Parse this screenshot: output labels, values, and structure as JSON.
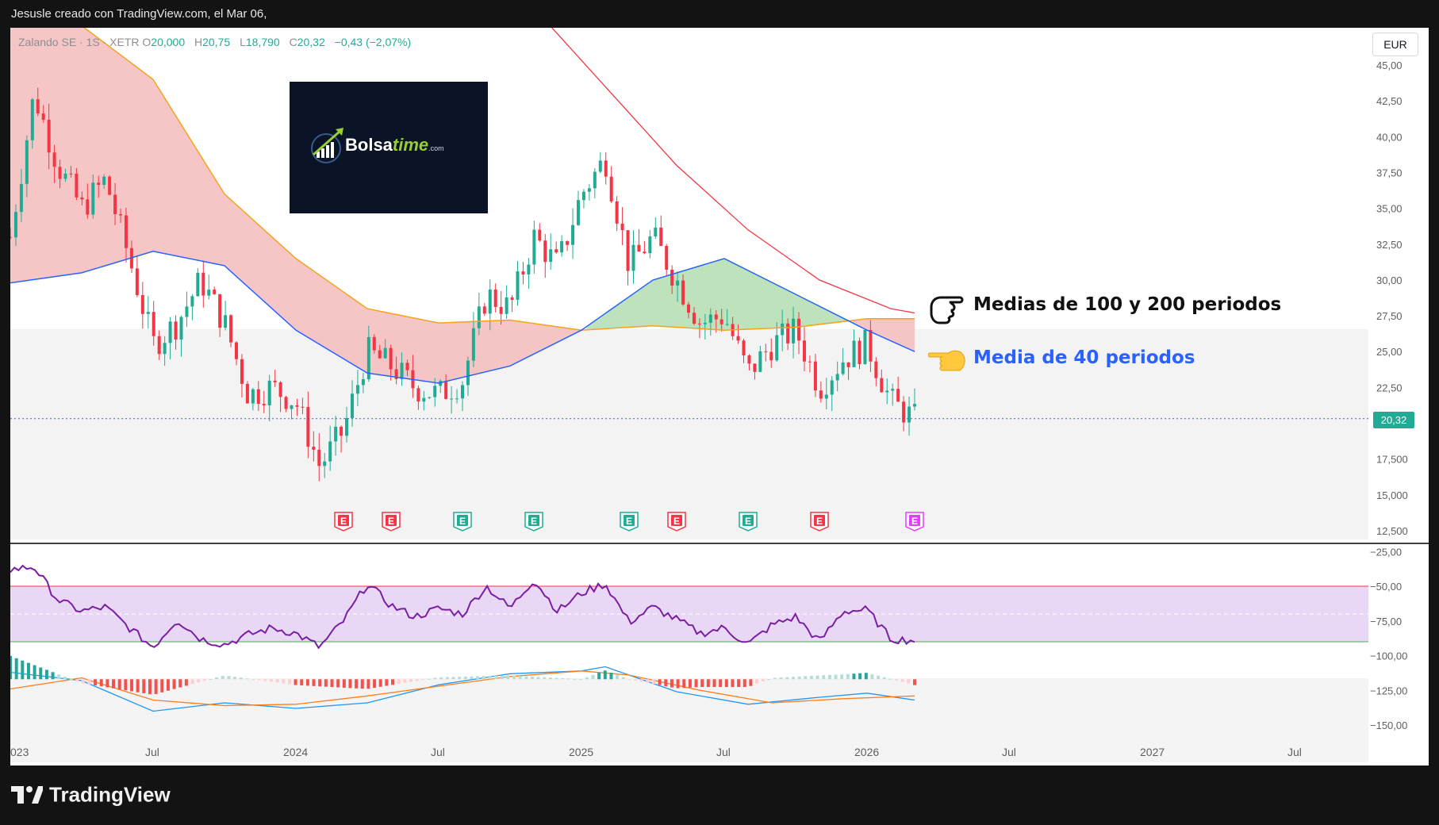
{
  "header": {
    "caption": "Jesusle creado con TradingView.com, el Mar 06,"
  },
  "legend": {
    "symbol": "Zalando SE · 1S · XETR",
    "open_label": "O",
    "open": "20,000",
    "high_label": "H",
    "high": "20,75",
    "low_label": "L",
    "low": "18,790",
    "close_label": "C",
    "close": "20,32",
    "change": "−0,43 (−2,07%)"
  },
  "currency": "EUR",
  "logo": {
    "brand_main": "Bolsa",
    "brand_accent": "time",
    "brand_suffix": ".com"
  },
  "annotations": {
    "ma_long": "Medias de 100 y 200 periodos",
    "ma_short": "Media de 40 periodos",
    "ma_long_icon": "pointing-hand-icon",
    "ma_short_icon": "pointing-hand-icon"
  },
  "last_price_tag": "20,32",
  "footer": {
    "brand": "TradingView",
    "icon": "tradingview-logo-icon"
  },
  "colors": {
    "up": "#22ab94",
    "down": "#f23645",
    "ma40": "#2962ff",
    "ma100": "#f7a21b",
    "ma200": "#f23645",
    "fill_bear": "#f5c0c0",
    "fill_bull": "#b7dfb5",
    "osc": "#7b1fa2",
    "macd": "#2196f3",
    "signal": "#ff7d1a"
  },
  "chart_data": [
    {
      "type": "candlestick",
      "title": "Zalando SE · 1S · XETR",
      "currency": "EUR",
      "x_ticks": [
        "023",
        "Jul",
        "2024",
        "Jul",
        "2025",
        "Jul",
        "2026",
        "Jul",
        "2027",
        "Jul"
      ],
      "y_ticks": [
        "45,00",
        "42,50",
        "40,00",
        "37,50",
        "35,00",
        "32,50",
        "30,00",
        "27,50",
        "25,00",
        "22,50",
        "17,500",
        "15,000",
        "12,500"
      ],
      "ylim": [
        12.0,
        46.5
      ],
      "last_price": 20.32,
      "earnings_markers": [
        {
          "label": "E",
          "date": "2024-03",
          "color": "#f23645"
        },
        {
          "label": "E",
          "date": "2024-05",
          "color": "#f23645"
        },
        {
          "label": "E",
          "date": "2024-08",
          "color": "#22ab94"
        },
        {
          "label": "E",
          "date": "2024-11",
          "color": "#22ab94"
        },
        {
          "label": "E",
          "date": "2025-03",
          "color": "#22ab94"
        },
        {
          "label": "E",
          "date": "2025-05",
          "color": "#f23645"
        },
        {
          "label": "E",
          "date": "2025-08",
          "color": "#22ab94"
        },
        {
          "label": "E",
          "date": "2025-11",
          "color": "#f23645"
        },
        {
          "label": "E",
          "date": "2026-03",
          "color": "#e040fb"
        }
      ],
      "close_path": [
        [
          "2023-01",
          33.0
        ],
        [
          "2023-02",
          43.0
        ],
        [
          "2023-03",
          38.0
        ],
        [
          "2023-04",
          35.0
        ],
        [
          "2023-05",
          37.0
        ],
        [
          "2023-06",
          31.5
        ],
        [
          "2023-07",
          25.5
        ],
        [
          "2023-08",
          27.0
        ],
        [
          "2023-09",
          30.0
        ],
        [
          "2023-10",
          27.0
        ],
        [
          "2023-11",
          22.0
        ],
        [
          "2023-12",
          22.5
        ],
        [
          "2024-01",
          21.5
        ],
        [
          "2024-02",
          17.0
        ],
        [
          "2024-03",
          19.5
        ],
        [
          "2024-04",
          25.0
        ],
        [
          "2024-05",
          24.0
        ],
        [
          "2024-06",
          22.5
        ],
        [
          "2024-07",
          22.0
        ],
        [
          "2024-08",
          23.0
        ],
        [
          "2024-09",
          29.0
        ],
        [
          "2024-10",
          28.0
        ],
        [
          "2024-11",
          33.0
        ],
        [
          "2024-12",
          31.0
        ],
        [
          "2025-01",
          36.0
        ],
        [
          "2025-02",
          38.5
        ],
        [
          "2025-03",
          31.0
        ],
        [
          "2025-04",
          33.0
        ],
        [
          "2025-05",
          30.0
        ],
        [
          "2025-06",
          27.0
        ],
        [
          "2025-07",
          27.5
        ],
        [
          "2025-08",
          23.5
        ],
        [
          "2025-09",
          25.5
        ],
        [
          "2025-10",
          26.5
        ],
        [
          "2025-11",
          22.5
        ],
        [
          "2025-12",
          24.5
        ],
        [
          "2026-01",
          25.5
        ],
        [
          "2026-02",
          21.5
        ],
        [
          "2026-03",
          20.32
        ]
      ],
      "ma40": [
        [
          "2023-01",
          29.8
        ],
        [
          "2023-04",
          30.5
        ],
        [
          "2023-07",
          32.0
        ],
        [
          "2023-10",
          31.0
        ],
        [
          "2024-01",
          26.5
        ],
        [
          "2024-04",
          23.5
        ],
        [
          "2024-07",
          22.8
        ],
        [
          "2024-10",
          24.0
        ],
        [
          "2025-01",
          26.5
        ],
        [
          "2025-04",
          30.0
        ],
        [
          "2025-07",
          31.5
        ],
        [
          "2025-10",
          29.0
        ],
        [
          "2026-01",
          26.5
        ],
        [
          "2026-03",
          25.0
        ]
      ],
      "ma100": [
        [
          "2023-03",
          49.0
        ],
        [
          "2023-07",
          44.0
        ],
        [
          "2023-10",
          36.0
        ],
        [
          "2024-01",
          31.5
        ],
        [
          "2024-04",
          28.0
        ],
        [
          "2024-07",
          27.0
        ],
        [
          "2024-10",
          27.2
        ],
        [
          "2025-01",
          26.5
        ],
        [
          "2025-04",
          26.8
        ],
        [
          "2025-07",
          26.5
        ],
        [
          "2025-10",
          26.7
        ],
        [
          "2026-01",
          27.3
        ],
        [
          "2026-03",
          27.3
        ]
      ],
      "ma200": [
        [
          "2024-11",
          49.0
        ],
        [
          "2025-02",
          43.5
        ],
        [
          "2025-05",
          38.0
        ],
        [
          "2025-08",
          33.5
        ],
        [
          "2025-11",
          30.0
        ],
        [
          "2026-02",
          28.0
        ],
        [
          "2026-03",
          27.7
        ]
      ]
    },
    {
      "type": "line",
      "y_ticks": [
        "−25,00",
        "−50,00",
        "−75,00",
        "−100,00",
        "−125,00",
        "−150,00"
      ],
      "ylim": [
        -162,
        -22
      ],
      "band": [
        -90,
        -50
      ],
      "oscillator": [
        [
          "2023-01",
          -38
        ],
        [
          "2023-02",
          -36
        ],
        [
          "2023-03",
          -60
        ],
        [
          "2023-04",
          -68
        ],
        [
          "2023-05",
          -65
        ],
        [
          "2023-06",
          -80
        ],
        [
          "2023-07",
          -94
        ],
        [
          "2023-08",
          -74
        ],
        [
          "2023-09",
          -88
        ],
        [
          "2023-10",
          -92
        ],
        [
          "2023-11",
          -85
        ],
        [
          "2023-12",
          -80
        ],
        [
          "2024-01",
          -84
        ],
        [
          "2024-02",
          -94
        ],
        [
          "2024-03",
          -75
        ],
        [
          "2024-04",
          -48
        ],
        [
          "2024-05",
          -64
        ],
        [
          "2024-06",
          -72
        ],
        [
          "2024-07",
          -66
        ],
        [
          "2024-08",
          -70
        ],
        [
          "2024-09",
          -50
        ],
        [
          "2024-10",
          -66
        ],
        [
          "2024-11",
          -45
        ],
        [
          "2024-12",
          -68
        ],
        [
          "2025-01",
          -55
        ],
        [
          "2025-02",
          -48
        ],
        [
          "2025-03",
          -76
        ],
        [
          "2025-04",
          -65
        ],
        [
          "2025-05",
          -74
        ],
        [
          "2025-06",
          -84
        ],
        [
          "2025-07",
          -80
        ],
        [
          "2025-08",
          -92
        ],
        [
          "2025-09",
          -78
        ],
        [
          "2025-10",
          -72
        ],
        [
          "2025-11",
          -90
        ],
        [
          "2025-12",
          -68
        ],
        [
          "2026-01",
          -67
        ],
        [
          "2026-02",
          -88
        ],
        [
          "2026-03",
          -89
        ]
      ],
      "macd": [
        [
          "2023-01",
          -112
        ],
        [
          "2023-04",
          -118
        ],
        [
          "2023-07",
          -140
        ],
        [
          "2023-10",
          -134
        ],
        [
          "2024-01",
          -138
        ],
        [
          "2024-04",
          -134
        ],
        [
          "2024-07",
          -121
        ],
        [
          "2024-10",
          -113
        ],
        [
          "2025-01",
          -111
        ],
        [
          "2025-02",
          -108
        ],
        [
          "2025-05",
          -126
        ],
        [
          "2025-08",
          -135
        ],
        [
          "2025-11",
          -130
        ],
        [
          "2026-01",
          -127
        ],
        [
          "2026-03",
          -132
        ]
      ],
      "signal": [
        [
          "2023-01",
          -124
        ],
        [
          "2023-04",
          -116
        ],
        [
          "2023-07",
          -132
        ],
        [
          "2023-10",
          -136
        ],
        [
          "2024-01",
          -135
        ],
        [
          "2024-04",
          -129
        ],
        [
          "2024-07",
          -122
        ],
        [
          "2024-10",
          -115
        ],
        [
          "2025-01",
          -111
        ],
        [
          "2025-03",
          -114
        ],
        [
          "2025-06",
          -125
        ],
        [
          "2025-09",
          -134
        ],
        [
          "2025-12",
          -131
        ],
        [
          "2026-03",
          -129
        ]
      ]
    }
  ]
}
